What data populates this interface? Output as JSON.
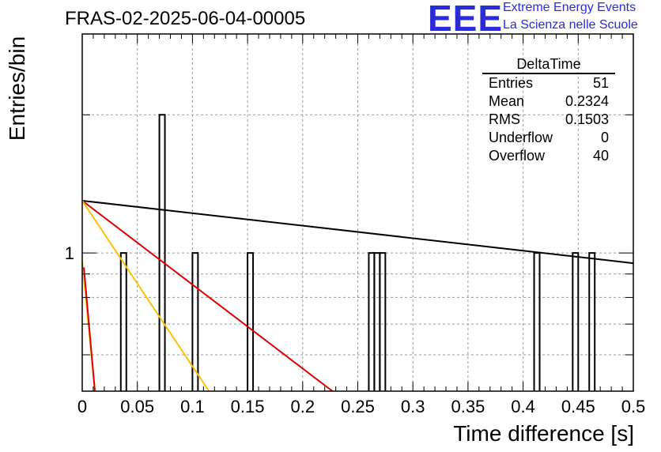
{
  "header": {
    "run_title": "FRAS-02-2025-06-04-00005",
    "logo_text": "EEE",
    "logo_line1": "Extreme Energy Events",
    "logo_line2": "La Scienza nelle Scuole",
    "brand_color": "#2b2bd8"
  },
  "stats": {
    "title": "DeltaTime",
    "rows": [
      {
        "label": "Entries",
        "value": "51"
      },
      {
        "label": "Mean",
        "value": "0.2324"
      },
      {
        "label": "RMS",
        "value": "0.1503"
      },
      {
        "label": "Underflow",
        "value": "0"
      },
      {
        "label": "Overflow",
        "value": "40"
      }
    ]
  },
  "chart_data": {
    "type": "bar",
    "title": "FRAS-02-2025-06-04-00005",
    "xlabel": "Time difference [s]",
    "ylabel": "Entries/bin",
    "xlim": [
      0,
      0.5
    ],
    "ylim": [
      0.5,
      3
    ],
    "yscale": "log",
    "grid": true,
    "x_ticks": [
      0,
      0.05,
      0.1,
      0.15,
      0.2,
      0.25,
      0.3,
      0.35,
      0.4,
      0.45,
      0.5
    ],
    "x_tick_labels": [
      "0",
      "0.05",
      "0.1",
      "0.15",
      "0.2",
      "0.25",
      "0.3",
      "0.35",
      "0.4",
      "0.45",
      "0.5"
    ],
    "y_ticks": [
      1
    ],
    "y_tick_labels": [
      "1"
    ],
    "bin_width": 0.005,
    "bins": [
      {
        "x": 0.035,
        "count": 1
      },
      {
        "x": 0.07,
        "count": 2
      },
      {
        "x": 0.1,
        "count": 1
      },
      {
        "x": 0.15,
        "count": 1
      },
      {
        "x": 0.26,
        "count": 1
      },
      {
        "x": 0.265,
        "count": 1
      },
      {
        "x": 0.27,
        "count": 1
      },
      {
        "x": 0.41,
        "count": 1
      },
      {
        "x": 0.445,
        "count": 1
      },
      {
        "x": 0.46,
        "count": 1
      }
    ],
    "fits": [
      {
        "color": "#000000",
        "points": [
          [
            0,
            1.3
          ],
          [
            0.5,
            0.95
          ]
        ]
      },
      {
        "color": "#dd0000",
        "points": [
          [
            0,
            1.3
          ],
          [
            0.227,
            0.5
          ]
        ]
      },
      {
        "color": "#ffc000",
        "points": [
          [
            0,
            1.3
          ],
          [
            0.115,
            0.5
          ]
        ]
      },
      {
        "color": "#ffc000",
        "points": [
          [
            0,
            0.96
          ],
          [
            0.0115,
            0.5
          ]
        ]
      },
      {
        "color": "#dd0000",
        "points": [
          [
            0.0015,
            0.93
          ],
          [
            0.0115,
            0.5
          ]
        ]
      }
    ]
  }
}
